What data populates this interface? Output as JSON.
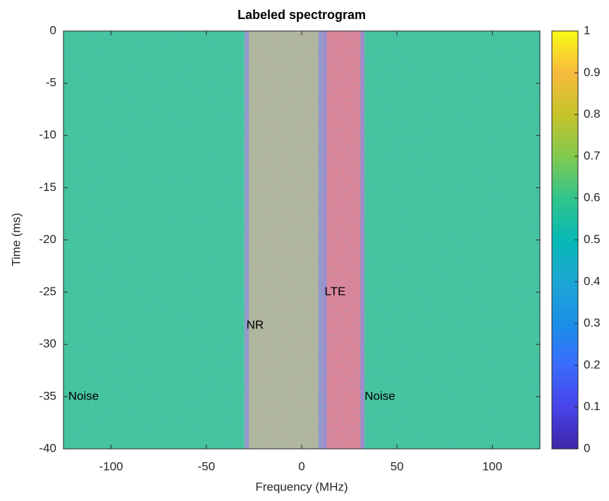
{
  "chart_data": {
    "type": "spectrogram",
    "title": "Labeled spectrogram",
    "x_label": "Frequency (MHz)",
    "y_label": "Time (ms)",
    "xlim": [
      -125,
      125
    ],
    "ylim": [
      -40,
      0
    ],
    "xticks": [
      -100,
      -50,
      0,
      50,
      100
    ],
    "yticks": [
      0,
      -5,
      -10,
      -15,
      -20,
      -25,
      -30,
      -35,
      -40
    ],
    "regions": [
      {
        "label": "Noise",
        "xrange": [
          -125,
          -30
        ],
        "color": "#45c39c",
        "label_at": [
          -122.5,
          -35
        ]
      },
      {
        "label": "NR",
        "xrange": [
          -30,
          11
        ],
        "color": "#b4b59c",
        "edge": "#8d8fd6",
        "label_at": [
          -29,
          -28.2
        ]
      },
      {
        "label": "LTE",
        "xrange": [
          11,
          33
        ],
        "color": "#de8497",
        "edge": "#8d8fd6",
        "label_at": [
          12,
          -25
        ]
      },
      {
        "label": "Noise",
        "xrange": [
          33,
          125
        ],
        "color": "#45c39c",
        "label_at": [
          33,
          -35
        ]
      }
    ],
    "colorbar": {
      "clim": [
        0,
        1
      ],
      "ticks": [
        0,
        0.1,
        0.2,
        0.3,
        0.4,
        0.5,
        0.6,
        0.7,
        0.8,
        0.9,
        1
      ],
      "colormap": [
        "#3e26a8",
        "#4744e8",
        "#3a6bfd",
        "#1a8fe6",
        "#1ca7d4",
        "#07b9b4",
        "#32c48c",
        "#81ca4e",
        "#c7c329",
        "#f7ba3d",
        "#f9fb15"
      ]
    }
  }
}
